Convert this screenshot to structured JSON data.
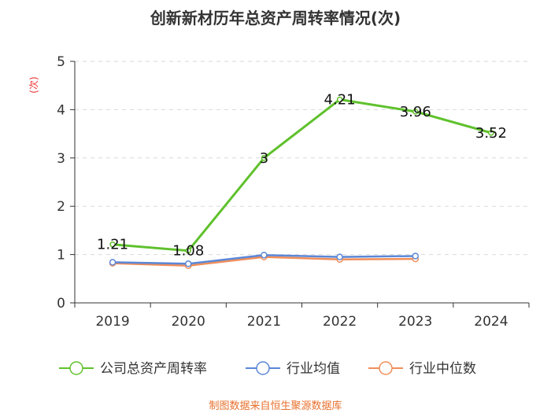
{
  "chart_data": {
    "type": "line",
    "title": "创新新材历年总资产周转率情况(次)",
    "ylabel": "(次)",
    "xlabel": "",
    "ylim": [
      0,
      5
    ],
    "yticks": [
      "0",
      "1",
      "2",
      "3",
      "4",
      "5"
    ],
    "categories": [
      "2019",
      "2020",
      "2021",
      "2022",
      "2023",
      "2024"
    ],
    "series": [
      {
        "name": "公司总资产周转率",
        "color": "#5fc12c",
        "values": [
          1.21,
          1.08,
          3,
          4.21,
          3.96,
          3.52
        ],
        "labels": [
          "1.21",
          "1.08",
          "3",
          "4.21",
          "3.96",
          "3.52"
        ]
      },
      {
        "name": "行业均值",
        "color": "#5b87d6",
        "values": [
          0.84,
          0.81,
          0.99,
          0.95,
          0.97,
          null
        ]
      },
      {
        "name": "行业中位数",
        "color": "#f08e5a",
        "values": [
          0.82,
          0.77,
          0.95,
          0.9,
          0.91,
          null
        ]
      }
    ],
    "legend_position": "bottom",
    "grid": true
  },
  "source": "制图数据来自恒生聚源数据库"
}
